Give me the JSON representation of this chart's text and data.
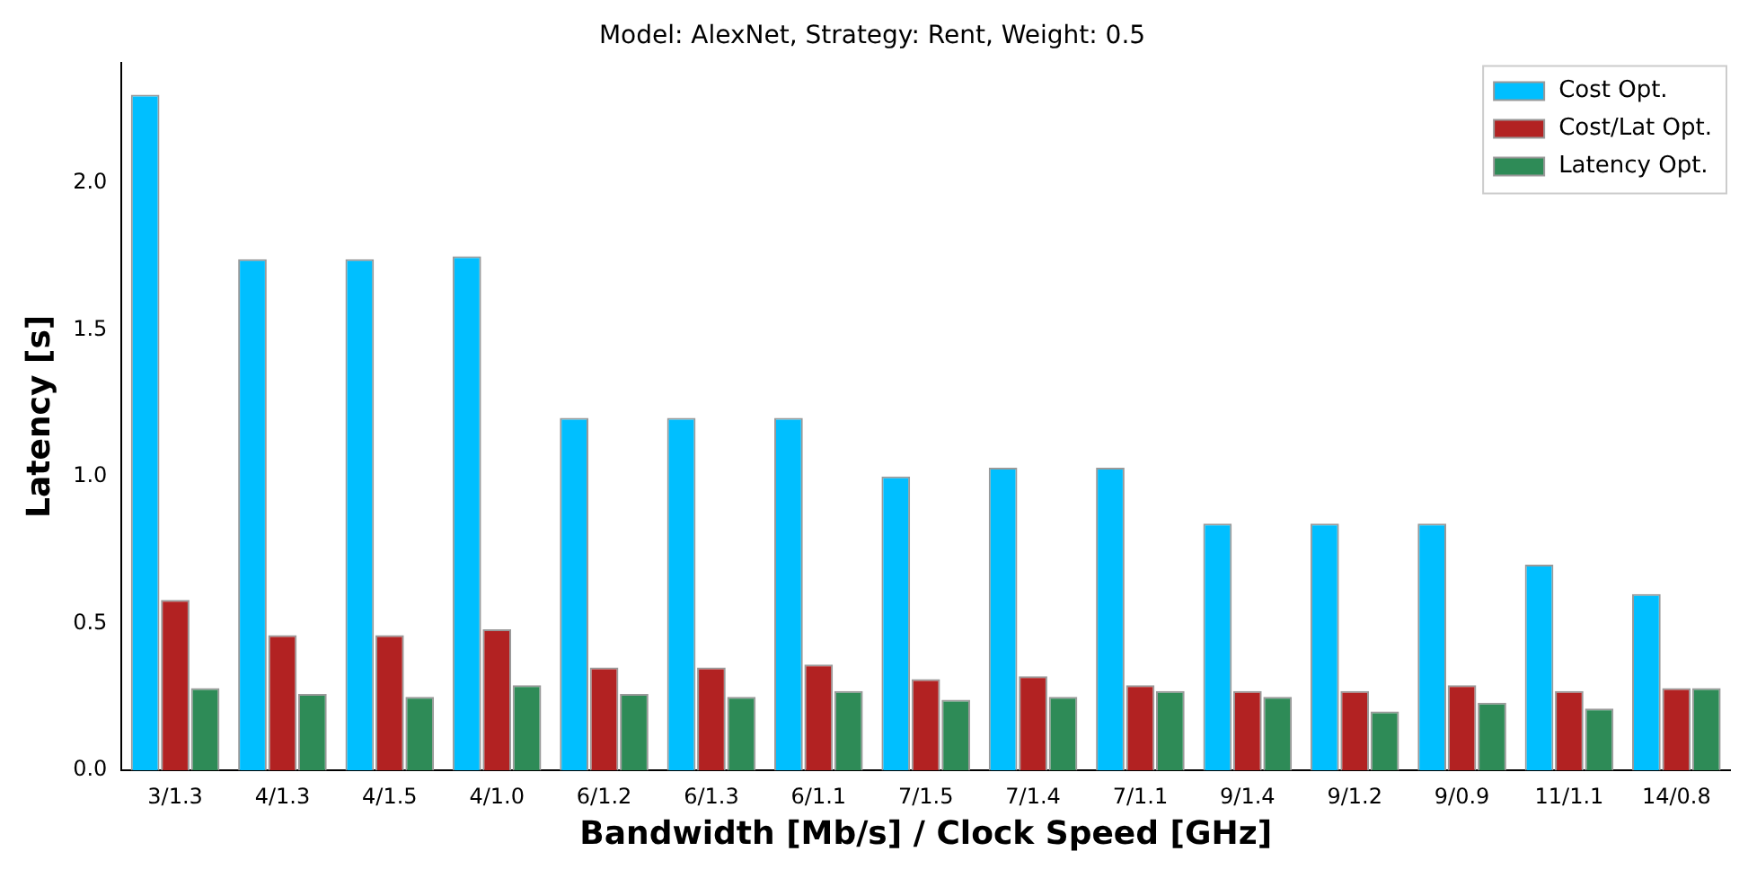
{
  "chart_data": {
    "type": "bar",
    "title": "Model: AlexNet, Strategy: Rent, Weight: 0.5",
    "xlabel": "Bandwidth [Mb/s] / Clock Speed [GHz]",
    "ylabel": "Latency [s]",
    "categories": [
      "3/1.3",
      "4/1.3",
      "4/1.5",
      "4/1.0",
      "6/1.2",
      "6/1.3",
      "6/1.1",
      "7/1.5",
      "7/1.4",
      "7/1.1",
      "9/1.4",
      "9/1.2",
      "9/0.9",
      "11/1.1",
      "14/0.8"
    ],
    "series": [
      {
        "name": "Cost Opt.",
        "color": "#00bfff",
        "values": [
          2.3,
          1.74,
          1.74,
          1.75,
          1.2,
          1.2,
          1.2,
          1.0,
          1.03,
          1.03,
          0.84,
          0.84,
          0.84,
          0.7,
          0.6
        ]
      },
      {
        "name": "Cost/Lat Opt.",
        "color": "#b22222",
        "values": [
          0.58,
          0.46,
          0.46,
          0.48,
          0.35,
          0.35,
          0.36,
          0.31,
          0.32,
          0.29,
          0.27,
          0.27,
          0.29,
          0.27,
          0.28
        ]
      },
      {
        "name": "Latency Opt.",
        "color": "#2e8b57",
        "values": [
          0.28,
          0.26,
          0.25,
          0.29,
          0.26,
          0.25,
          0.27,
          0.24,
          0.25,
          0.27,
          0.25,
          0.2,
          0.23,
          0.21,
          0.28
        ]
      }
    ],
    "ylim": [
      0,
      2.41
    ],
    "yticks": [
      {
        "value": 0,
        "label": "0.0"
      },
      {
        "value": 0.5,
        "label": "0.5"
      },
      {
        "value": 1,
        "label": "1.0"
      },
      {
        "value": 1.5,
        "label": "1.5"
      },
      {
        "value": 2,
        "label": "2.0"
      }
    ],
    "grid": false,
    "legend": "top right"
  }
}
